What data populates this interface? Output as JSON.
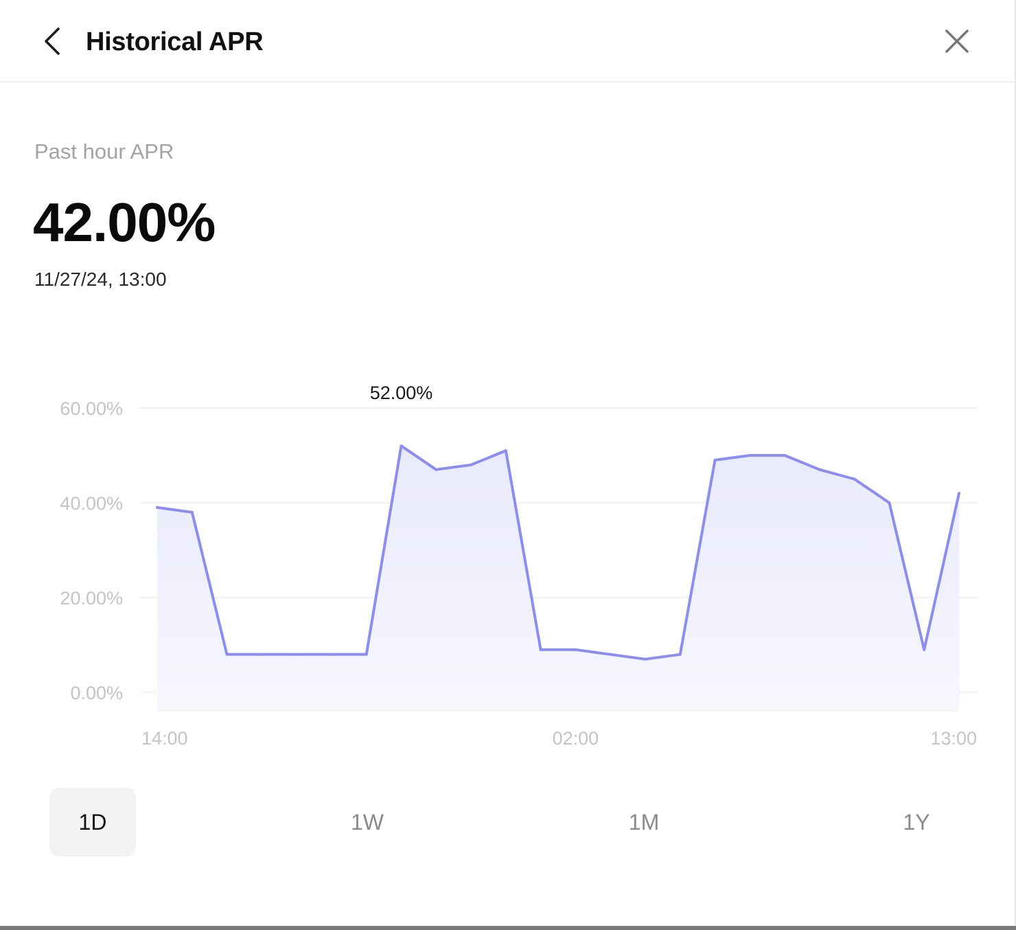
{
  "header": {
    "title": "Historical APR",
    "back_icon": "chevron-left-icon",
    "close_icon": "close-icon"
  },
  "summary": {
    "label": "Past hour APR",
    "value": "42.00%",
    "timestamp": "11/27/24, 13:00"
  },
  "ranges": [
    {
      "label": "1D",
      "active": true
    },
    {
      "label": "1W",
      "active": false
    },
    {
      "label": "1M",
      "active": false
    },
    {
      "label": "1Y",
      "active": false
    }
  ],
  "colors": {
    "line": "#8b8ef0",
    "fill": "#ecedfc",
    "grid": "#f2f2f2",
    "axis_text": "#c4c4c4"
  },
  "chart_data": {
    "type": "area",
    "title": "",
    "xlabel": "",
    "ylabel": "",
    "ylim": [
      0,
      60
    ],
    "y_ticks": [
      "0.00%",
      "20.00%",
      "40.00%",
      "60.00%"
    ],
    "y_tick_values": [
      0,
      20,
      40,
      60
    ],
    "x_tick_labels": [
      {
        "index": 0,
        "label": "14:00"
      },
      {
        "index": 12,
        "label": "02:00"
      },
      {
        "index": 23,
        "label": "13:00"
      }
    ],
    "annotation": {
      "index": 7,
      "text": "52.00%"
    },
    "grid": true,
    "series": [
      {
        "values": [
          39,
          38,
          8,
          8,
          8,
          8,
          8,
          52,
          47,
          48,
          51,
          9,
          9,
          8,
          7,
          8,
          49,
          50,
          50,
          47,
          45,
          40,
          9,
          42
        ]
      }
    ]
  }
}
